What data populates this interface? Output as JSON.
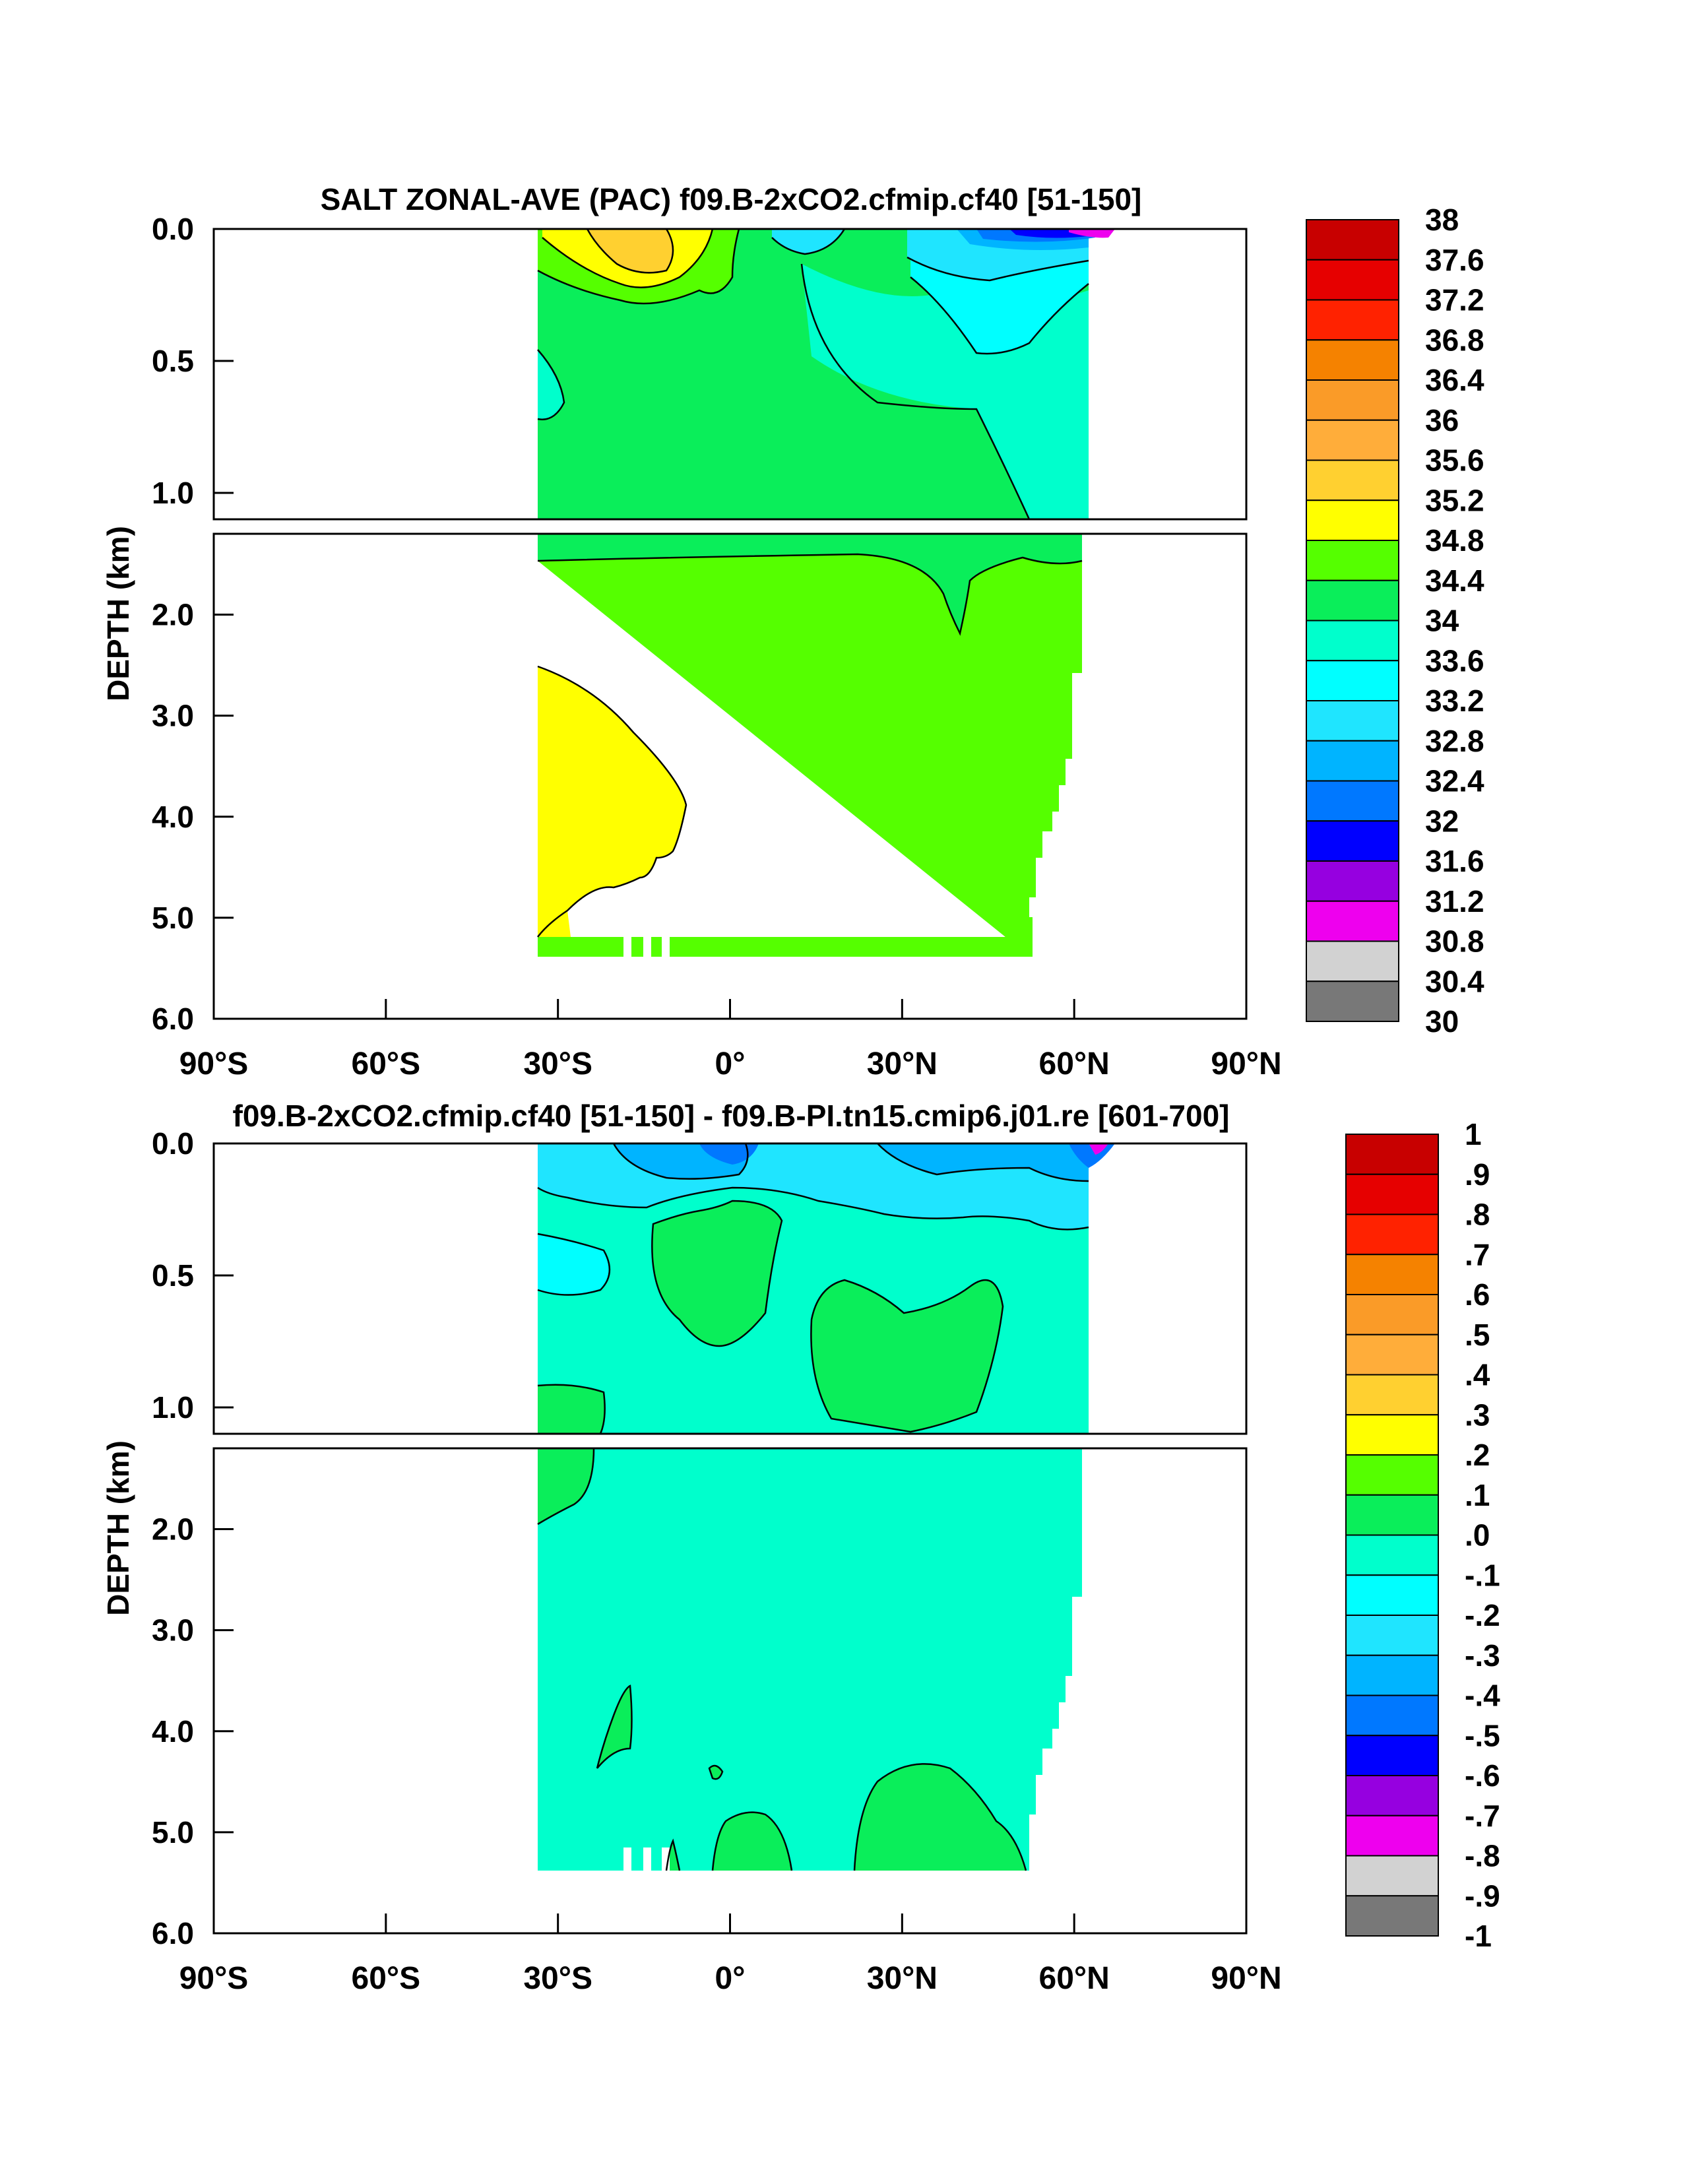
{
  "chart_data": [
    {
      "type": "heatmap",
      "title": "SALT ZONAL-AVE (PAC) f09.B-2xCO2.cfmip.cf40 [51-150]",
      "ylabel": "DEPTH (km)",
      "xlabel": "",
      "x_ticks": [
        "90°S",
        "60°S",
        "30°S",
        "0°",
        "30°N",
        "60°N",
        "90°N"
      ],
      "x_tick_values": [
        -90,
        -60,
        -30,
        0,
        30,
        60,
        90
      ],
      "y_ticks_upper": [
        "0.0",
        "0.5",
        "1.0"
      ],
      "y_ticks_upper_values": [
        0.0,
        0.5,
        1.0
      ],
      "y_ticks_lower": [
        "2.0",
        "3.0",
        "4.0",
        "5.0",
        "6.0"
      ],
      "y_ticks_lower_values": [
        2.0,
        3.0,
        4.0,
        5.0,
        6.0
      ],
      "xlim": [
        -90,
        90
      ],
      "ylim_upper": [
        0,
        1.1
      ],
      "ylim_lower": [
        1.2,
        6.0
      ],
      "colorbar_labels": [
        "38",
        "37.6",
        "37.2",
        "36.8",
        "36.4",
        "36",
        "35.6",
        "35.2",
        "34.8",
        "34.4",
        "34",
        "33.6",
        "33.2",
        "32.8",
        "32.4",
        "32",
        "31.6",
        "31.2",
        "30.8",
        "30.4",
        "30"
      ],
      "colorbar_colors": [
        "#c80000",
        "#e60000",
        "#ff2200",
        "#f58200",
        "#fa9b28",
        "#ffad3a",
        "#ffd030",
        "#ffff00",
        "#55ff00",
        "#0aee5a",
        "#00ffcc",
        "#00ffff",
        "#1fe5ff",
        "#00b4ff",
        "#0078ff",
        "#0000ff",
        "#9600e0",
        "#ee00ee",
        "#d2d2d2",
        "#787878"
      ],
      "regions": [
        {
          "value_range": [
            34.0,
            34.4
          ],
          "note": "dominant deep-ocean salinity, 33°S–62°N"
        },
        {
          "value_range": [
            34.8,
            35.2
          ],
          "note": "abyssal southern lobe, 33°S–10°S, 2.5–5.3 km"
        },
        {
          "value_range": [
            34.8,
            35.6
          ],
          "note": "subtropical surface maximum near 20°S–27°S"
        },
        {
          "value_range": [
            33.6,
            34.0
          ],
          "note": "North Pacific intermediate water 10°N–62°N"
        },
        {
          "value_range": [
            31.6,
            33.2
          ],
          "note": "low-salinity surface layer 50°N–65°N"
        }
      ]
    },
    {
      "type": "heatmap",
      "title": "f09.B-2xCO2.cfmip.cf40 [51-150] - f09.B-PI.tn15.cmip6.j01.re [601-700]",
      "ylabel": "DEPTH (km)",
      "xlabel": "",
      "x_ticks": [
        "90°S",
        "60°S",
        "30°S",
        "0°",
        "30°N",
        "60°N",
        "90°N"
      ],
      "x_tick_values": [
        -90,
        -60,
        -30,
        0,
        30,
        60,
        90
      ],
      "y_ticks_upper": [
        "0.0",
        "0.5",
        "1.0"
      ],
      "y_ticks_upper_values": [
        0.0,
        0.5,
        1.0
      ],
      "y_ticks_lower": [
        "2.0",
        "3.0",
        "4.0",
        "5.0",
        "6.0"
      ],
      "y_ticks_lower_values": [
        2.0,
        3.0,
        4.0,
        5.0,
        6.0
      ],
      "xlim": [
        -90,
        90
      ],
      "ylim_upper": [
        0,
        1.1
      ],
      "ylim_lower": [
        1.2,
        6.0
      ],
      "colorbar_labels": [
        "1",
        ".9",
        ".8",
        ".7",
        ".6",
        ".5",
        ".4",
        ".3",
        ".2",
        ".1",
        ".0",
        "-.1",
        "-.2",
        "-.3",
        "-.4",
        "-.5",
        "-.6",
        "-.7",
        "-.8",
        "-.9",
        "-1"
      ],
      "colorbar_colors": [
        "#c80000",
        "#e60000",
        "#ff2200",
        "#f58200",
        "#fa9b28",
        "#ffad3a",
        "#ffd030",
        "#ffff00",
        "#55ff00",
        "#0aee5a",
        "#00ffcc",
        "#00ffff",
        "#1fe5ff",
        "#00b4ff",
        "#0078ff",
        "#0000ff",
        "#9600e0",
        "#ee00ee",
        "#d2d2d2",
        "#787878"
      ],
      "regions": [
        {
          "value_range": [
            -0.1,
            0.0
          ],
          "note": "dominant anomaly throughout basin"
        },
        {
          "value_range": [
            0.0,
            0.1
          ],
          "note": "positive lobes near 10°S, 30°N–45°N and abyssal patches"
        },
        {
          "value_range": [
            -0.2,
            -0.1
          ],
          "note": "freshening near 33°S–27°S at 0.5 km"
        },
        {
          "value_range": [
            -0.4,
            -0.2
          ],
          "note": "surface freshening 20°S–62°N"
        },
        {
          "value_range": [
            -0.8,
            -0.5
          ],
          "note": "strong surface freshening near 60°N"
        }
      ]
    }
  ]
}
